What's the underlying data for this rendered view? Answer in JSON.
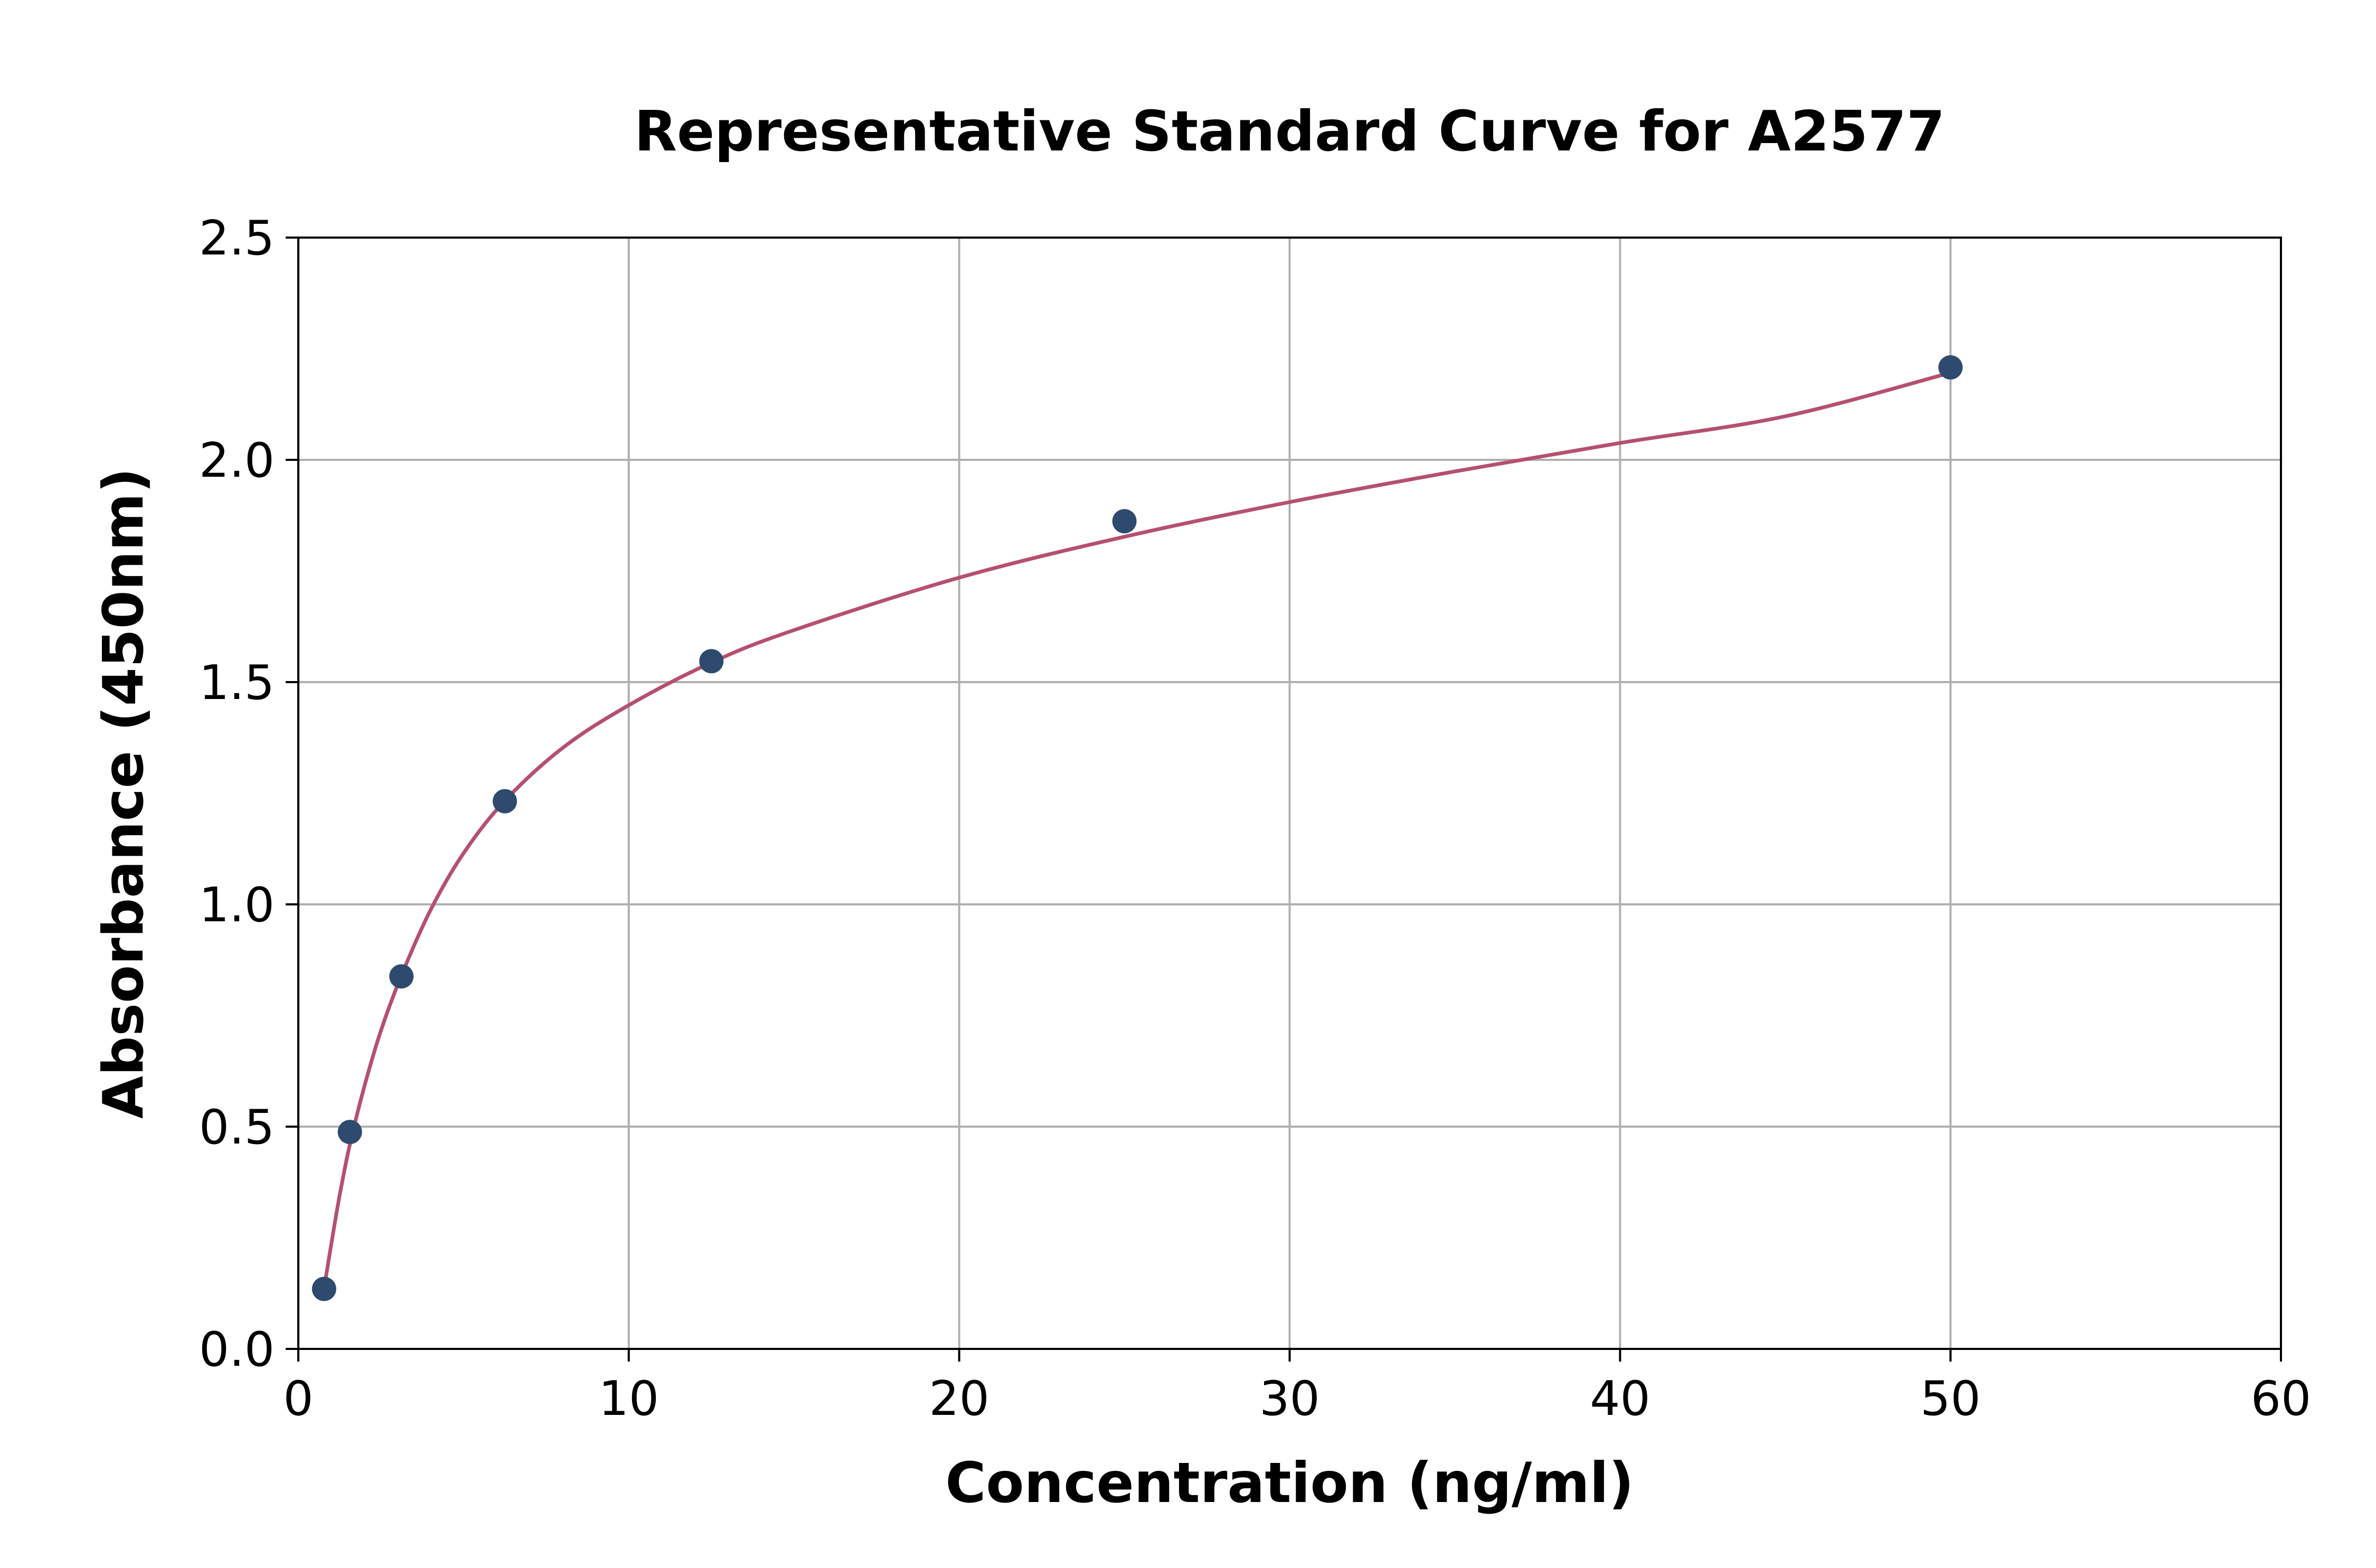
{
  "chart_data": {
    "type": "scatter",
    "title": "Representative Standard Curve for A2577",
    "xlabel": "Concentration (ng/ml)",
    "ylabel": "Absorbance (450nm)",
    "xlim": [
      0,
      60
    ],
    "ylim": [
      0,
      2.5
    ],
    "xticks": [
      0,
      10,
      20,
      30,
      40,
      50,
      60
    ],
    "yticks": [
      0.0,
      0.5,
      1.0,
      1.5,
      2.0,
      2.5
    ],
    "xtick_labels": [
      "0",
      "10",
      "20",
      "30",
      "40",
      "50",
      "60"
    ],
    "ytick_labels": [
      "0.0",
      "0.5",
      "1.0",
      "1.5",
      "2.0",
      "2.5"
    ],
    "grid": true,
    "legend": "none",
    "series": [
      {
        "type": "scatter",
        "color": "#2e4a6e",
        "x": [
          0.78,
          1.56,
          3.12,
          6.25,
          12.5,
          25,
          50
        ],
        "y": [
          0.135,
          0.488,
          0.838,
          1.232,
          1.547,
          1.862,
          2.208
        ]
      },
      {
        "type": "line",
        "color": "#b5506e",
        "x": [
          0.78,
          1.0,
          1.25,
          1.56,
          2.0,
          2.5,
          3.12,
          4.0,
          5.0,
          6.25,
          8.0,
          10.0,
          12.5,
          15.0,
          20.0,
          25.0,
          30.0,
          35.0,
          40.0,
          45.0,
          50.0
        ],
        "y": [
          0.136,
          0.237,
          0.345,
          0.46,
          0.591,
          0.716,
          0.84,
          0.987,
          1.115,
          1.233,
          1.352,
          1.448,
          1.544,
          1.617,
          1.735,
          1.827,
          1.905,
          1.974,
          2.038,
          2.098,
          2.196
        ]
      }
    ],
    "style": {
      "grid_color": "#b0b0b0",
      "axis_color": "#000000"
    }
  }
}
